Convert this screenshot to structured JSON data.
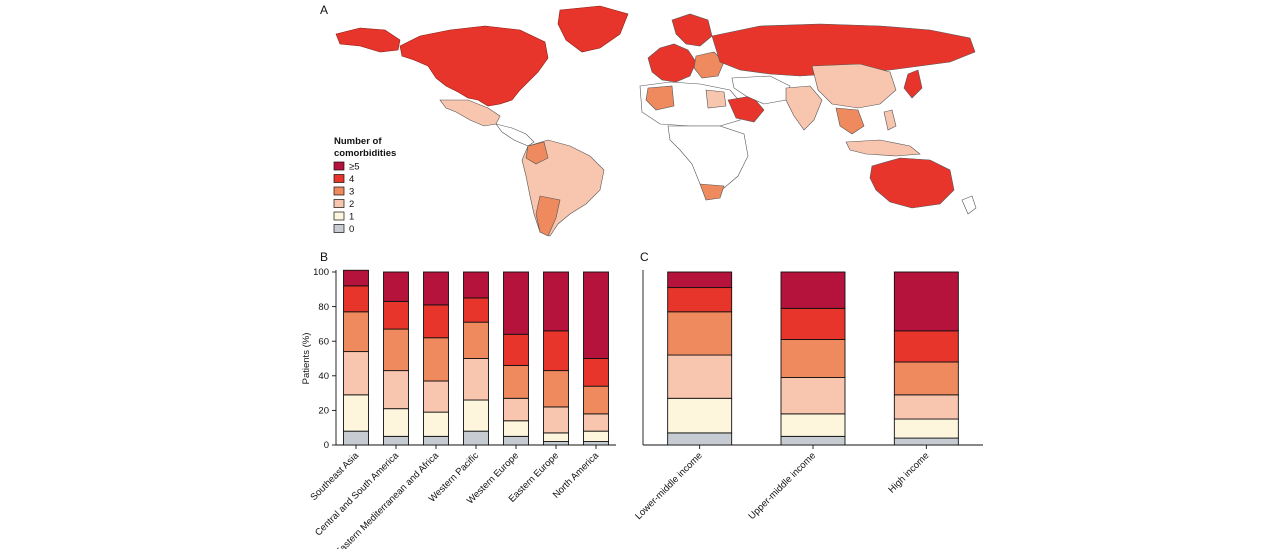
{
  "panels": {
    "a": "A",
    "b": "B",
    "c": "C"
  },
  "legend": {
    "title_line1": "Number of",
    "title_line2": "comorbidities",
    "items": [
      {
        "label": "≥5",
        "color": "#b5123c"
      },
      {
        "label": "4",
        "color": "#e8352b"
      },
      {
        "label": "3",
        "color": "#ef8a5e"
      },
      {
        "label": "2",
        "color": "#f8c5ae"
      },
      {
        "label": "1",
        "color": "#fdf5dc"
      },
      {
        "label": "0",
        "color": "#c6ccd2"
      }
    ]
  },
  "chart_data": [
    {
      "type": "bar",
      "stacked": true,
      "panel": "B",
      "ylabel": "Patients (%)",
      "ylim": [
        0,
        100
      ],
      "yticks": [
        "0",
        "20",
        "40",
        "60",
        "80",
        "100"
      ],
      "categories": [
        "Southeast Asia",
        "Central and South America",
        "Eastern Mediterranean and Africa",
        "Western Pacific",
        "Western Europe",
        "Eastern Europe",
        "North America"
      ],
      "series": [
        {
          "name": "0",
          "values": [
            8,
            5,
            5,
            8,
            5,
            2,
            2
          ]
        },
        {
          "name": "1",
          "values": [
            21,
            16,
            14,
            18,
            9,
            5,
            6
          ]
        },
        {
          "name": "2",
          "values": [
            25,
            22,
            18,
            24,
            13,
            15,
            10
          ]
        },
        {
          "name": "3",
          "values": [
            23,
            24,
            25,
            21,
            19,
            21,
            16
          ]
        },
        {
          "name": "4",
          "values": [
            15,
            16,
            19,
            14,
            18,
            23,
            16
          ]
        },
        {
          "name": "≥5",
          "values": [
            9,
            17,
            19,
            15,
            36,
            34,
            50
          ]
        }
      ]
    },
    {
      "type": "bar",
      "stacked": true,
      "panel": "C",
      "ylim": [
        0,
        100
      ],
      "categories": [
        "Lower-middle income",
        "Upper-middle income",
        "High income"
      ],
      "series": [
        {
          "name": "0",
          "values": [
            7,
            5,
            4
          ]
        },
        {
          "name": "1",
          "values": [
            20,
            13,
            11
          ]
        },
        {
          "name": "2",
          "values": [
            25,
            21,
            14
          ]
        },
        {
          "name": "3",
          "values": [
            25,
            22,
            19
          ]
        },
        {
          "name": "4",
          "values": [
            14,
            18,
            18
          ]
        },
        {
          "name": "≥5",
          "values": [
            9,
            21,
            34
          ]
        }
      ]
    }
  ]
}
